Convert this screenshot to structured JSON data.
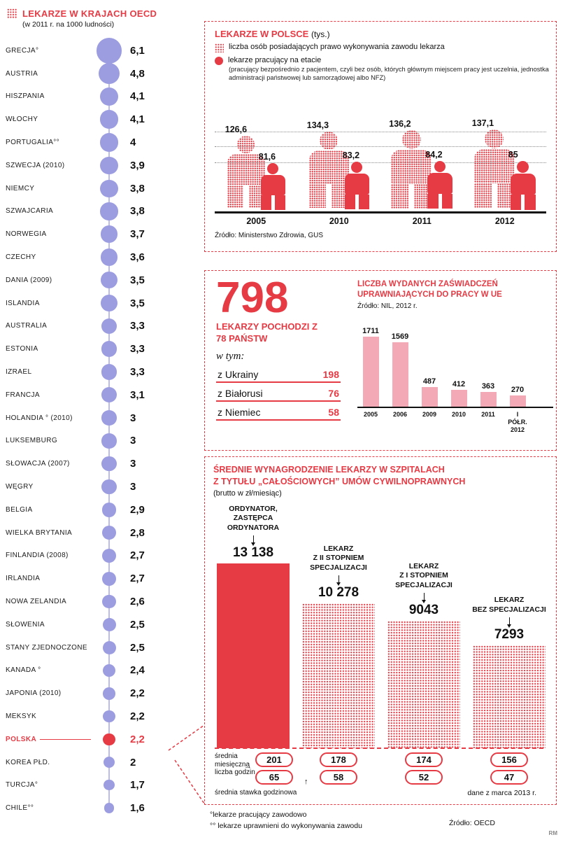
{
  "colors": {
    "red": "#e63a44",
    "purple": "#9c9ce1",
    "pink": "#f3aab6",
    "text": "#111111"
  },
  "icons": {
    "arrow_right": "→",
    "arrow_up": "↑"
  },
  "oecd": {
    "title": "LEKARZE W KRAJACH OECD",
    "subtitle": "(w 2011 r. na 1000 ludności)",
    "items": [
      {
        "label": "GRECJA°",
        "value": "6,1",
        "num": 6.1
      },
      {
        "label": "AUSTRIA",
        "value": "4,8",
        "num": 4.8
      },
      {
        "label": "HISZPANIA",
        "value": "4,1",
        "num": 4.1
      },
      {
        "label": "WŁOCHY",
        "value": "4,1",
        "num": 4.1
      },
      {
        "label": "PORTUGALIA°°",
        "value": "4",
        "num": 4
      },
      {
        "label": "SZWECJA (2010)",
        "value": "3,9",
        "num": 3.9
      },
      {
        "label": "NIEMCY",
        "value": "3,8",
        "num": 3.8
      },
      {
        "label": "SZWAJCARIA",
        "value": "3,8",
        "num": 3.8
      },
      {
        "label": "NORWEGIA",
        "value": "3,7",
        "num": 3.7
      },
      {
        "label": "CZECHY",
        "value": "3,6",
        "num": 3.6
      },
      {
        "label": "DANIA (2009)",
        "value": "3,5",
        "num": 3.5
      },
      {
        "label": "ISLANDIA",
        "value": "3,5",
        "num": 3.5
      },
      {
        "label": "AUSTRALIA",
        "value": "3,3",
        "num": 3.3
      },
      {
        "label": "ESTONIA",
        "value": "3,3",
        "num": 3.3
      },
      {
        "label": "IZRAEL",
        "value": "3,3",
        "num": 3.3
      },
      {
        "label": "FRANCJA",
        "value": "3,1",
        "num": 3.1
      },
      {
        "label": "HOLANDIA ° (2010)",
        "value": "3",
        "num": 3
      },
      {
        "label": "LUKSEMBURG",
        "value": "3",
        "num": 3
      },
      {
        "label": "SŁOWACJA (2007)",
        "value": "3",
        "num": 3
      },
      {
        "label": "WĘGRY",
        "value": "3",
        "num": 3
      },
      {
        "label": "BELGIA",
        "value": "2,9",
        "num": 2.9
      },
      {
        "label": "WIELKA BRYTANIA",
        "value": "2,8",
        "num": 2.8
      },
      {
        "label": "FINLANDIA (2008)",
        "value": "2,7",
        "num": 2.7
      },
      {
        "label": "IRLANDIA",
        "value": "2,7",
        "num": 2.7
      },
      {
        "label": "NOWA ZELANDIA",
        "value": "2,6",
        "num": 2.6
      },
      {
        "label": "SŁOWENIA",
        "value": "2,5",
        "num": 2.5
      },
      {
        "label": "STANY ZJEDNOCZONE",
        "value": "2,5",
        "num": 2.5
      },
      {
        "label": "KANADA °",
        "value": "2,4",
        "num": 2.4
      },
      {
        "label": "JAPONIA (2010)",
        "value": "2,2",
        "num": 2.2
      },
      {
        "label": "MEKSYK",
        "value": "2,2",
        "num": 2.2
      },
      {
        "label": "POLSKA",
        "value": "2,2",
        "num": 2.2,
        "highlight": true
      },
      {
        "label": "KOREA PŁD.",
        "value": "2",
        "num": 2
      },
      {
        "label": "TURCJA°",
        "value": "1,7",
        "num": 1.7
      },
      {
        "label": "CHILE°°",
        "value": "1,6",
        "num": 1.6
      }
    ]
  },
  "poland": {
    "title": "LEKARZE W POLSCE",
    "unit": "(tys.)",
    "legend_dotted": "liczba osób posiadających prawo wykonywania zawodu lekarza",
    "legend_solid": "lekarze pracujący na etacie",
    "legend_solid_note": "(pracujący bezpośrednio z pacjentem, czyli bez osób, których głównym miejscem pracy jest uczelnia, jednostka administracji państwowej lub samorządowej albo NFZ)",
    "source": "Źródło: Ministerstwo Zdrowia, GUS",
    "groups": [
      {
        "year": "2005",
        "licensed": "126,6",
        "licensed_num": 126.6,
        "employed": "81,6",
        "employed_num": 81.6
      },
      {
        "year": "2010",
        "licensed": "134,3",
        "licensed_num": 134.3,
        "employed": "83,2",
        "employed_num": 83.2
      },
      {
        "year": "2011",
        "licensed": "136,2",
        "licensed_num": 136.2,
        "employed": "84,2",
        "employed_num": 84.2
      },
      {
        "year": "2012",
        "licensed": "137,1",
        "licensed_num": 137.1,
        "employed": "85",
        "employed_num": 85
      }
    ]
  },
  "foreign": {
    "big_number": "798",
    "caption": "LEKARZY POCHODZI Z 78 PAŃSTW",
    "wtym": "w tym:",
    "rows": [
      {
        "label": "z Ukrainy",
        "value": "198"
      },
      {
        "label": "z Białorusi",
        "value": "76"
      },
      {
        "label": "z Niemiec",
        "value": "58"
      }
    ]
  },
  "certificates": {
    "title": "LICZBA WYDANYCH ZAŚWIADCZEŃ UPRAWNIAJĄCYCH DO PRACY W UE",
    "source": "Źródło: NIL, 2012 r.",
    "bars": [
      {
        "label": "2005",
        "value": "1711",
        "num": 1711
      },
      {
        "label": "2006",
        "value": "1569",
        "num": 1569
      },
      {
        "label": "2009",
        "value": "487",
        "num": 487
      },
      {
        "label": "2010",
        "value": "412",
        "num": 412
      },
      {
        "label": "2011",
        "value": "363",
        "num": 363
      },
      {
        "label": "I PÓŁR. 2012",
        "value": "270",
        "num": 270
      }
    ]
  },
  "salaries": {
    "title_line1": "ŚREDNIE WYNAGRODZENIE LEKARZY W SZPITALACH",
    "title_line2": "Z TYTUŁU „CAŁOŚCIOWYCH” UMÓW CYWILNOPRAWNYCH",
    "unit": "(brutto w zł/miesiąc)",
    "hours_label": "średnia miesięczna liczba godzin",
    "rate_label": "średnia stawka godzinowa",
    "note": "dane z marca 2013 r.",
    "bars": [
      {
        "label": "ORDYNATOR,\nZASTĘPCA\nORDYNATORA",
        "value": "13 138",
        "num": 13138,
        "hours": "201",
        "rate": "65"
      },
      {
        "label": "LEKARZ\nZ II STOPNIEM\nSPECJALIZACJI",
        "value": "10 278",
        "num": 10278,
        "hours": "178",
        "rate": "58"
      },
      {
        "label": "LEKARZ\nZ I STOPNIEM\nSPECJALIZACJI",
        "value": "9043",
        "num": 9043,
        "hours": "174",
        "rate": "52"
      },
      {
        "label": "LEKARZ\nBEZ SPECJALIZACJI",
        "value": "7293",
        "num": 7293,
        "hours": "156",
        "rate": "47"
      }
    ]
  },
  "footnotes": {
    "line1": "°lekarze pracujący zawodowo",
    "line2": "°° lekarze uprawnieni do wykonywania zawodu",
    "source": "Źródło: OECD",
    "credit": "RM"
  },
  "chart_data": [
    {
      "type": "bar",
      "title": "LEKARZE W KRAJACH OECD (w 2011 r. na 1000 ludności)",
      "categories": [
        "GRECJA°",
        "AUSTRIA",
        "HISZPANIA",
        "WŁOCHY",
        "PORTUGALIA°°",
        "SZWECJA (2010)",
        "NIEMCY",
        "SZWAJCARIA",
        "NORWEGIA",
        "CZECHY",
        "DANIA (2009)",
        "ISLANDIA",
        "AUSTRALIA",
        "ESTONIA",
        "IZRAEL",
        "FRANCJA",
        "HOLANDIA ° (2010)",
        "LUKSEMBURG",
        "SŁOWACJA (2007)",
        "WĘGRY",
        "BELGIA",
        "WIELKA BRYTANIA",
        "FINLANDIA (2008)",
        "IRLANDIA",
        "NOWA ZELANDIA",
        "SŁOWENIA",
        "STANY ZJEDNOCZONE",
        "KANADA °",
        "JAPONIA (2010)",
        "MEKSYK",
        "POLSKA",
        "KOREA PŁD.",
        "TURCJA°",
        "CHILE°°"
      ],
      "values": [
        6.1,
        4.8,
        4.1,
        4.1,
        4,
        3.9,
        3.8,
        3.8,
        3.7,
        3.6,
        3.5,
        3.5,
        3.3,
        3.3,
        3.3,
        3.1,
        3,
        3,
        3,
        3,
        2.9,
        2.8,
        2.7,
        2.7,
        2.6,
        2.5,
        2.5,
        2.4,
        2.2,
        2.2,
        2.2,
        2,
        1.7,
        1.6
      ],
      "highlight": "POLSKA",
      "source": "Źródło: OECD"
    },
    {
      "type": "bar",
      "title": "LEKARZE W POLSCE (tys.)",
      "categories": [
        "2005",
        "2010",
        "2011",
        "2012"
      ],
      "series": [
        {
          "name": "liczba osób posiadających prawo wykonywania zawodu lekarza",
          "values": [
            126.6,
            134.3,
            136.2,
            137.1
          ]
        },
        {
          "name": "lekarze pracujący na etacie",
          "values": [
            81.6,
            83.2,
            84.2,
            85
          ]
        }
      ],
      "source": "Źródło: Ministerstwo Zdrowia, GUS"
    },
    {
      "type": "bar",
      "title": "LICZBA WYDANYCH ZAŚWIADCZEŃ UPRAWNIAJĄCYCH DO PRACY W UE",
      "categories": [
        "2005",
        "2006",
        "2009",
        "2010",
        "2011",
        "I PÓŁR. 2012"
      ],
      "values": [
        1711,
        1569,
        487,
        412,
        363,
        270
      ],
      "source": "Źródło: NIL, 2012 r."
    },
    {
      "type": "bar",
      "title": "ŚREDNIE WYNAGRODZENIE LEKARZY W SZPITALACH Z TYTUŁU „CAŁOŚCIOWYCH” UMÓW CYWILNOPRAWNYCH (brutto w zł/miesiąc)",
      "categories": [
        "ORDYNATOR, ZASTĘPCA ORDYNATORA",
        "LEKARZ Z II STOPNIEM SPECJALIZACJI",
        "LEKARZ Z I STOPNIEM SPECJALIZACJI",
        "LEKARZ BEZ SPECJALIZACJI"
      ],
      "values": [
        13138,
        10278,
        9043,
        7293
      ],
      "avg_monthly_hours": [
        201,
        178,
        174,
        156
      ],
      "avg_hourly_rate": [
        65,
        58,
        52,
        47
      ],
      "note": "dane z marca 2013 r."
    }
  ]
}
